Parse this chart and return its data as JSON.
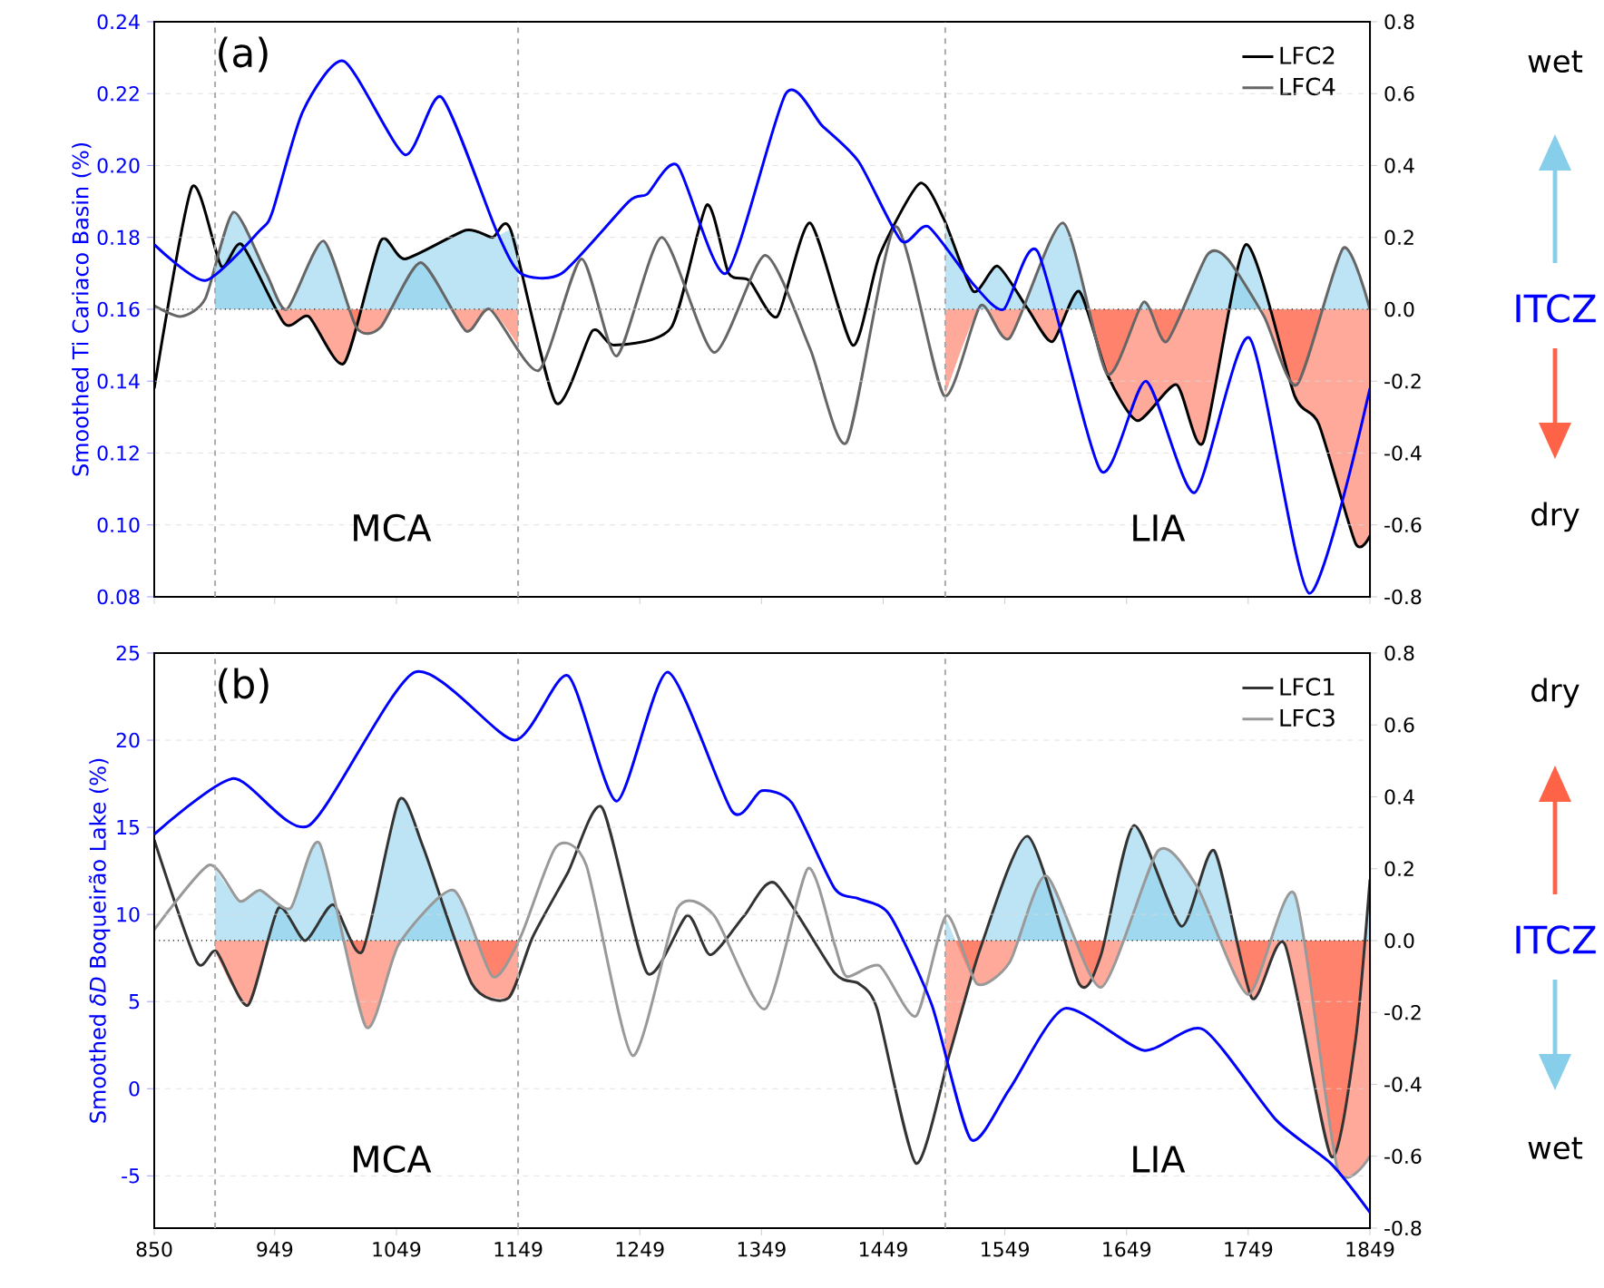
{
  "chart_data": [
    {
      "type": "line",
      "xlim": [
        850,
        1849
      ],
      "xticks": [
        850,
        949,
        1049,
        1149,
        1249,
        1349,
        1449,
        1549,
        1649,
        1749,
        1849
      ],
      "tick_labels": "y",
      "ylabel": "Smoothed Ti Cariaco Basin (%)",
      "ylim": [
        0.08,
        0.24
      ],
      "yticks": [
        {
          "value": 0.08,
          "label": "0.08"
        },
        {
          "value": 0.1,
          "label": "0.10"
        },
        {
          "value": 0.12,
          "label": "0.12"
        },
        {
          "value": 0.14,
          "label": "0.14"
        },
        {
          "value": 0.16,
          "label": "0.16"
        },
        {
          "value": 0.18,
          "label": "0.18"
        },
        {
          "value": 0.2,
          "label": "0.20"
        },
        {
          "value": 0.22,
          "label": "0.22"
        },
        {
          "value": 0.24,
          "label": "0.24"
        }
      ],
      "y2lim": [
        -0.8,
        0.8
      ],
      "y2ticks": [
        {
          "value": -0.8,
          "label": "-0.8"
        },
        {
          "value": -0.6,
          "label": "-0.6"
        },
        {
          "value": -0.4,
          "label": "-0.4"
        },
        {
          "value": -0.2,
          "label": "-0.2"
        },
        {
          "value": 0,
          "label": "0.0"
        },
        {
          "value": 0.2,
          "label": "0.2"
        },
        {
          "value": 0.4,
          "label": "0.4"
        },
        {
          "value": 0.6,
          "label": "0.6"
        },
        {
          "value": 0.8,
          "label": "0.8"
        }
      ],
      "grid": "y",
      "legend": "top right",
      "annotations": [
        "(a)",
        "MCA",
        "LIA",
        "wet",
        "ITCZ",
        "dry"
      ],
      "ref_lines": [
        {
          "axis": "x",
          "value": 900,
          "color": "#aaaaaa",
          "line_style": "dashed"
        },
        {
          "axis": "x",
          "value": 1149,
          "color": "#aaaaaa",
          "line_style": "dashed"
        },
        {
          "axis": "x",
          "value": 1500,
          "color": "#aaaaaa",
          "line_style": "dashed"
        },
        {
          "axis": "y2",
          "value": 0,
          "color": "#000000",
          "line_style": "dotted"
        }
      ],
      "series": [
        {
          "color": "#0000ff",
          "x": [
            850,
            892,
            937,
            947,
            972,
            1006,
            1056,
            1086,
            1131,
            1151,
            1185,
            1240,
            1255,
            1280,
            1320,
            1369,
            1399,
            1429,
            1464,
            1486,
            1523,
            1548,
            1576,
            1628,
            1665,
            1705,
            1750,
            1799,
            1849
          ],
          "values": [
            0.178,
            0.168,
            0.182,
            0.187,
            0.215,
            0.229,
            0.203,
            0.219,
            0.182,
            0.17,
            0.17,
            0.19,
            0.192,
            0.2,
            0.17,
            0.22,
            0.211,
            0.201,
            0.179,
            0.183,
            0.167,
            0.16,
            0.176,
            0.115,
            0.14,
            0.109,
            0.152,
            0.081,
            0.138
          ]
        },
        {
          "type": "area",
          "axis": "y2",
          "colors": [
            "#87ceeb",
            "#87ceeb",
            "#87ceeb",
            "#ff6347",
            "#ff6347",
            "#ff6347",
            "#87ceeb",
            "#87ceeb",
            "#87ceeb",
            "#87ceeb",
            "#87ceeb",
            "#87ceeb"
          ],
          "x": [
            900,
            905,
            922,
            957,
            977,
            1006,
            1036,
            1056,
            1106,
            1128,
            1143,
            1149
          ],
          "values": [
            0.14,
            0.12,
            0.18,
            -0.04,
            -0.02,
            -0.15,
            0.19,
            0.14,
            0.22,
            0.2,
            0.22,
            0.18
          ]
        },
        {
          "type": "area",
          "axis": "y2",
          "colors": [
            "#87ceeb",
            "#87ceeb",
            "#87ceeb",
            "#87ceeb",
            "#87ceeb",
            "#ff6347",
            "#ff6347",
            "#87ceeb",
            "#ff6347",
            "#87ceeb",
            "#ff6347"
          ],
          "x": [
            900,
            915,
            942,
            959,
            989,
            1016,
            1036,
            1069,
            1106,
            1126,
            1149
          ],
          "values": [
            0.1,
            0.27,
            0.1,
            0.0,
            0.19,
            -0.05,
            -0.05,
            0.13,
            -0.06,
            0.0,
            -0.1
          ]
        },
        {
          "type": "area",
          "axis": "y2",
          "colors": [
            "#87ceeb",
            "#87ceeb",
            "#87ceeb",
            "#87ceeb",
            "#ff6347",
            "#87ceeb",
            "#ff6347",
            "#ff6347",
            "#ff6347",
            "#ff6347",
            "#87ceeb",
            "#ff6347",
            "#ff6347",
            "#ff6347",
            "#ff6347"
          ],
          "x": [
            1500,
            1523,
            1543,
            1568,
            1588,
            1610,
            1633,
            1658,
            1690,
            1712,
            1747,
            1787,
            1807,
            1837,
            1849
          ],
          "values": [
            0.25,
            0.05,
            0.12,
            0.0,
            -0.09,
            0.05,
            -0.18,
            -0.31,
            -0.21,
            -0.37,
            0.18,
            -0.24,
            -0.32,
            -0.65,
            -0.63
          ]
        },
        {
          "type": "area",
          "axis": "y2",
          "colors": [
            "#ff6347",
            "#87ceeb",
            "#ff6347",
            "#87ceeb",
            "#ff6347",
            "#87ceeb",
            "#ff6347",
            "#87ceeb",
            "#87ceeb",
            "#ff6347",
            "#ff6347",
            "#87ceeb",
            "#87ceeb"
          ],
          "x": [
            1500,
            1529,
            1553,
            1597,
            1633,
            1663,
            1682,
            1715,
            1732,
            1762,
            1789,
            1827,
            1849
          ],
          "values": [
            -0.24,
            0.01,
            -0.08,
            0.24,
            -0.18,
            0.02,
            -0.09,
            0.15,
            0.14,
            -0.02,
            -0.21,
            0.17,
            0.0
          ]
        },
        {
          "name": "LFC2",
          "color": "#000000",
          "axis": "y2",
          "x": [
            850,
            881,
            905,
            922,
            957,
            977,
            1006,
            1036,
            1056,
            1106,
            1128,
            1143,
            1180,
            1210,
            1228,
            1275,
            1304,
            1322,
            1339,
            1362,
            1389,
            1424,
            1446,
            1479,
            1499,
            1523,
            1543,
            1568,
            1588,
            1610,
            1633,
            1658,
            1690,
            1712,
            1747,
            1787,
            1807,
            1837,
            1849
          ],
          "values": [
            -0.22,
            0.34,
            0.12,
            0.18,
            -0.04,
            -0.02,
            -0.15,
            0.19,
            0.14,
            0.22,
            0.2,
            0.22,
            -0.26,
            -0.06,
            -0.1,
            -0.05,
            0.29,
            0.1,
            0.08,
            -0.02,
            0.24,
            -0.1,
            0.15,
            0.35,
            0.25,
            0.05,
            0.12,
            0.0,
            -0.09,
            0.05,
            -0.18,
            -0.31,
            -0.21,
            -0.37,
            0.18,
            -0.24,
            -0.32,
            -0.65,
            -0.63
          ]
        },
        {
          "name": "LFC4",
          "color": "#666666",
          "axis": "y2",
          "x": [
            850,
            872,
            892,
            915,
            942,
            959,
            989,
            1016,
            1036,
            1069,
            1106,
            1126,
            1166,
            1201,
            1230,
            1267,
            1310,
            1352,
            1389,
            1419,
            1459,
            1499,
            1529,
            1553,
            1597,
            1633,
            1663,
            1682,
            1715,
            1732,
            1762,
            1789,
            1827,
            1849
          ],
          "values": [
            0.01,
            -0.02,
            0.03,
            0.27,
            0.1,
            0.0,
            0.19,
            -0.05,
            -0.05,
            0.13,
            -0.06,
            0.0,
            -0.17,
            0.14,
            -0.13,
            0.2,
            -0.12,
            0.15,
            -0.11,
            -0.37,
            0.23,
            -0.24,
            0.01,
            -0.08,
            0.24,
            -0.18,
            0.02,
            -0.09,
            0.15,
            0.14,
            -0.02,
            -0.21,
            0.17,
            0.0
          ]
        }
      ]
    },
    {
      "type": "line",
      "xlim": [
        850,
        1849
      ],
      "xticks": [
        850,
        949,
        1049,
        1149,
        1249,
        1349,
        1449,
        1549,
        1649,
        1749,
        1849
      ],
      "ylabel": "Smoothed *δD* Boqueirão Lake (%)",
      "ylim": [
        -8,
        25
      ],
      "yticks": [
        -5,
        0,
        5,
        10,
        15,
        20,
        25
      ],
      "y2lim": [
        -0.8,
        0.8
      ],
      "y2ticks": [
        -0.8,
        -0.6,
        -0.4,
        -0.2,
        {
          "value": 0,
          "label": "0.0"
        },
        0.2,
        0.4,
        0.6,
        0.8
      ],
      "grid": "y",
      "legend": "top right",
      "annotations": [
        "(b)",
        "MCA",
        "LIA",
        "dry",
        "ITCZ",
        "wet"
      ],
      "ref_lines": [
        {
          "axis": "x",
          "value": 900,
          "color": "#aaaaaa",
          "line_style": "dashed"
        },
        {
          "axis": "x",
          "value": 1149,
          "color": "#aaaaaa",
          "line_style": "dashed"
        },
        {
          "axis": "x",
          "value": 1500,
          "color": "#aaaaaa",
          "line_style": "dashed"
        },
        {
          "axis": "y2",
          "value": 0,
          "color": "#000000",
          "line_style": "dotted"
        }
      ],
      "series": [
        {
          "color": "#0000ff",
          "x": [
            850,
            915,
            977,
            1064,
            1146,
            1190,
            1230,
            1272,
            1325,
            1349,
            1374,
            1409,
            1429,
            1454,
            1489,
            1521,
            1553,
            1598,
            1663,
            1712,
            1772,
            1817,
            1849
          ],
          "values": [
            14.6,
            17.8,
            15.1,
            23.9,
            20.0,
            23.7,
            16.5,
            23.9,
            15.9,
            17.1,
            16.4,
            11.5,
            10.9,
            10.0,
            4.8,
            -2.9,
            0.0,
            4.6,
            2.2,
            3.4,
            -1.8,
            -4.3,
            -7.1
          ]
        },
        {
          "type": "area",
          "axis": "y2",
          "colors": [
            "#ff6347",
            "#ff6347",
            "#87ceeb",
            "#87ceeb",
            "#87ceeb",
            "#ff6347",
            "#87ceeb",
            "#87ceeb",
            "#ff6347",
            "#ff6347",
            "#ff6347"
          ],
          "x": [
            900,
            927,
            952,
            974,
            997,
            1021,
            1051,
            1071,
            1111,
            1141,
            1149
          ],
          "values": [
            -0.03,
            -0.18,
            0.09,
            0.0,
            0.1,
            -0.03,
            0.39,
            0.26,
            -0.12,
            -0.16,
            -0.1
          ]
        },
        {
          "type": "area",
          "axis": "y2",
          "colors": [
            "#87ceeb",
            "#87ceeb",
            "#87ceeb",
            "#87ceeb",
            "#87ceeb",
            "#ff6347",
            "#ff6347",
            "#87ceeb",
            "#ff6347",
            "#87ceeb"
          ],
          "x": [
            900,
            920,
            937,
            962,
            986,
            1024,
            1051,
            1096,
            1128,
            1149
          ],
          "values": [
            0.2,
            0.11,
            0.14,
            0.09,
            0.27,
            -0.24,
            -0.01,
            0.14,
            -0.1,
            0.0
          ]
        },
        {
          "type": "area",
          "axis": "y2",
          "colors": [
            "#ff6347",
            "#ff6347",
            "#87ceeb",
            "#ff6347",
            "#ff6347",
            "#87ceeb",
            "#87ceeb",
            "#87ceeb",
            "#ff6347",
            "#ff6347",
            "#ff6347",
            "#ff6347",
            "#87ceeb"
          ],
          "x": [
            1500,
            1529,
            1568,
            1610,
            1628,
            1655,
            1694,
            1721,
            1752,
            1779,
            1817,
            1837,
            1849
          ],
          "values": [
            -0.35,
            -0.02,
            0.29,
            -0.12,
            -0.04,
            0.32,
            0.04,
            0.25,
            -0.16,
            -0.01,
            -0.6,
            -0.28,
            0.17
          ]
        },
        {
          "type": "area",
          "axis": "y2",
          "colors": [
            "#87ceeb",
            "#ff6347",
            "#ff6347",
            "#87ceeb",
            "#ff6347",
            "#87ceeb",
            "#87ceeb",
            "#ff6347",
            "#87ceeb",
            "#ff6347",
            "#ff6347"
          ],
          "x": [
            1500,
            1526,
            1553,
            1583,
            1628,
            1675,
            1707,
            1749,
            1787,
            1822,
            1849
          ],
          "values": [
            0.07,
            -0.12,
            -0.06,
            0.18,
            -0.13,
            0.25,
            0.15,
            -0.15,
            0.13,
            -0.63,
            -0.6
          ]
        },
        {
          "name": "LFC1",
          "color": "#333333",
          "axis": "y2",
          "x": [
            850,
            885,
            901,
            927,
            952,
            974,
            997,
            1021,
            1051,
            1071,
            1111,
            1141,
            1161,
            1190,
            1218,
            1255,
            1288,
            1307,
            1335,
            1360,
            1409,
            1429,
            1444,
            1476,
            1504,
            1529,
            1568,
            1610,
            1628,
            1655,
            1694,
            1721,
            1752,
            1779,
            1817,
            1837,
            1849
          ],
          "values": [
            0.28,
            -0.06,
            -0.03,
            -0.18,
            0.09,
            0.0,
            0.1,
            -0.03,
            0.39,
            0.26,
            -0.12,
            -0.16,
            0.01,
            0.19,
            0.37,
            -0.09,
            0.07,
            -0.04,
            0.07,
            0.16,
            -0.09,
            -0.12,
            -0.19,
            -0.62,
            -0.31,
            -0.02,
            0.29,
            -0.12,
            -0.04,
            0.32,
            0.04,
            0.25,
            -0.16,
            -0.01,
            -0.6,
            -0.28,
            0.17
          ]
        },
        {
          "name": "LFC3",
          "color": "#999999",
          "axis": "y2",
          "x": [
            850,
            895,
            920,
            937,
            962,
            986,
            1024,
            1051,
            1096,
            1128,
            1151,
            1180,
            1205,
            1243,
            1280,
            1310,
            1352,
            1387,
            1409,
            1419,
            1446,
            1476,
            1501,
            1526,
            1553,
            1583,
            1628,
            1675,
            1707,
            1749,
            1787,
            1822,
            1849
          ],
          "values": [
            0.03,
            0.21,
            0.11,
            0.14,
            0.09,
            0.27,
            -0.24,
            -0.01,
            0.14,
            -0.1,
            0.01,
            0.26,
            0.21,
            -0.32,
            0.09,
            0.07,
            -0.19,
            0.2,
            -0.01,
            -0.1,
            -0.07,
            -0.21,
            0.07,
            -0.12,
            -0.06,
            0.18,
            -0.13,
            0.25,
            0.15,
            -0.15,
            0.13,
            -0.63,
            -0.6
          ]
        }
      ]
    }
  ]
}
